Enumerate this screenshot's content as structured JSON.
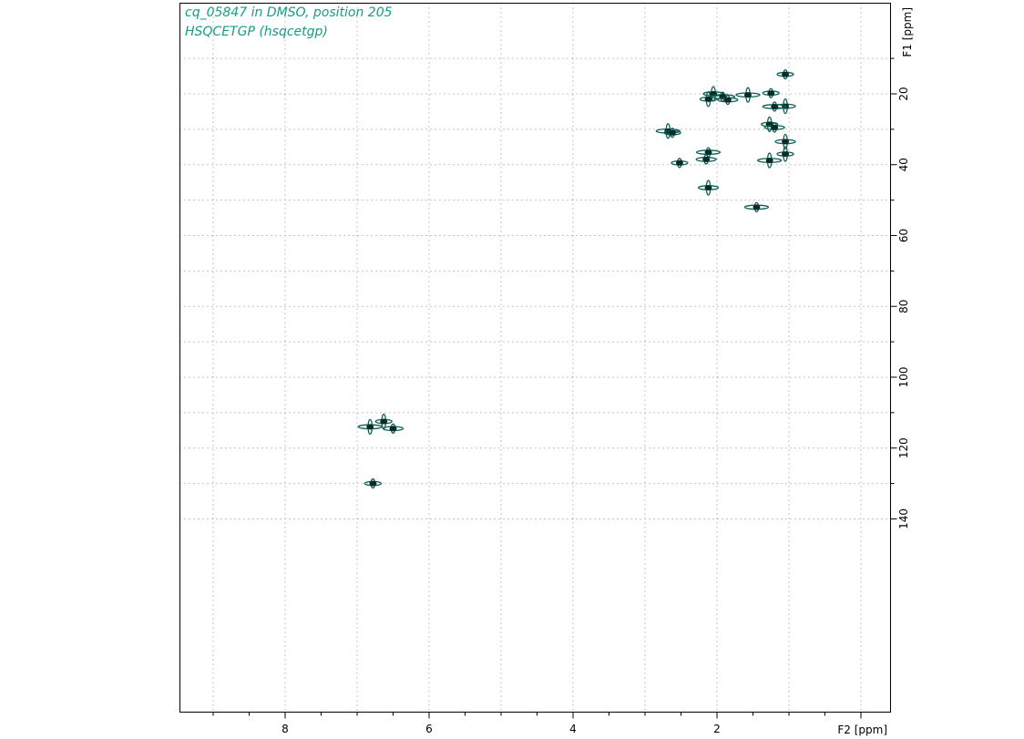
{
  "chart_data": {
    "type": "scatter",
    "title": "cq_05847 in DMSO, position 205",
    "subtitle": "HSQCETGP (hsqcetgp)",
    "xlabel": "F2 [ppm]",
    "ylabel": "F1 [ppm]",
    "xlim": [
      9.9,
      -0.2
    ],
    "ylim": [
      142,
      9
    ],
    "x_ticks": [
      8,
      6,
      4,
      2
    ],
    "y_ticks": [
      20,
      40,
      60,
      80,
      100,
      120,
      140
    ],
    "grid": true,
    "colors": {
      "contour": "#0f5f58",
      "contour_dark": "#0b2a28",
      "text": "#1a9a86",
      "axis": "#000000",
      "grid": "#8a8a8a"
    },
    "peaks": [
      {
        "x": 1.05,
        "y": 14.5
      },
      {
        "x": 2.05,
        "y": 20.0
      },
      {
        "x": 1.92,
        "y": 20.8
      },
      {
        "x": 2.12,
        "y": 21.5
      },
      {
        "x": 1.85,
        "y": 21.7
      },
      {
        "x": 1.57,
        "y": 20.3
      },
      {
        "x": 1.25,
        "y": 19.8
      },
      {
        "x": 1.05,
        "y": 23.5
      },
      {
        "x": 1.2,
        "y": 23.6
      },
      {
        "x": 1.27,
        "y": 28.6
      },
      {
        "x": 1.2,
        "y": 29.5
      },
      {
        "x": 2.68,
        "y": 30.5
      },
      {
        "x": 2.62,
        "y": 31.0
      },
      {
        "x": 1.05,
        "y": 33.5
      },
      {
        "x": 2.12,
        "y": 36.5
      },
      {
        "x": 1.05,
        "y": 37.0
      },
      {
        "x": 2.15,
        "y": 38.5
      },
      {
        "x": 1.27,
        "y": 38.8
      },
      {
        "x": 2.52,
        "y": 39.5
      },
      {
        "x": 2.12,
        "y": 46.5
      },
      {
        "x": 1.45,
        "y": 52.0
      },
      {
        "x": 6.63,
        "y": 112.5
      },
      {
        "x": 6.5,
        "y": 114.5
      },
      {
        "x": 6.82,
        "y": 114.0
      },
      {
        "x": 6.78,
        "y": 130.0
      }
    ]
  }
}
